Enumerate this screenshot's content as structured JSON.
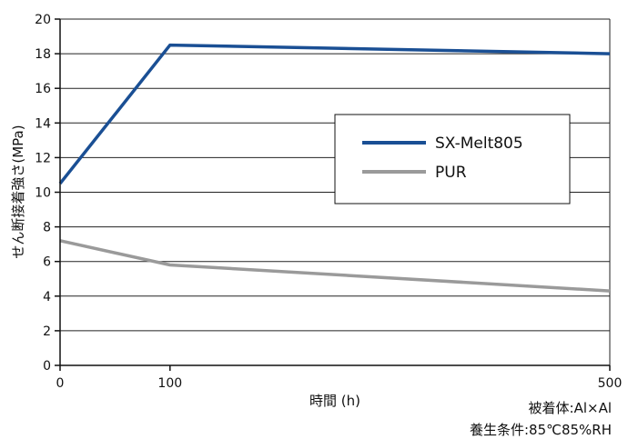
{
  "chart_data": {
    "type": "line",
    "ylabel": "せん断接着強さ(MPa)",
    "xlabel": "時間 (h)",
    "xlim": [
      0,
      500
    ],
    "ylim": [
      0,
      20
    ],
    "x_ticks": [
      0,
      100,
      500
    ],
    "y_ticks": [
      0,
      2,
      4,
      6,
      8,
      10,
      12,
      14,
      16,
      18,
      20
    ],
    "grid": "horizontal",
    "legend_position": "right",
    "series": [
      {
        "name": "SX-Melt805",
        "color": "#1a4f94",
        "x": [
          0,
          100,
          500
        ],
        "values": [
          10.5,
          18.5,
          18.0
        ]
      },
      {
        "name": "PUR",
        "color": "#9a9a9a",
        "x": [
          0,
          100,
          500
        ],
        "values": [
          7.2,
          5.8,
          4.3
        ]
      }
    ]
  },
  "notes": {
    "adherend": "被着体:Al×Al",
    "aging": "養生条件:85℃85%RH"
  }
}
